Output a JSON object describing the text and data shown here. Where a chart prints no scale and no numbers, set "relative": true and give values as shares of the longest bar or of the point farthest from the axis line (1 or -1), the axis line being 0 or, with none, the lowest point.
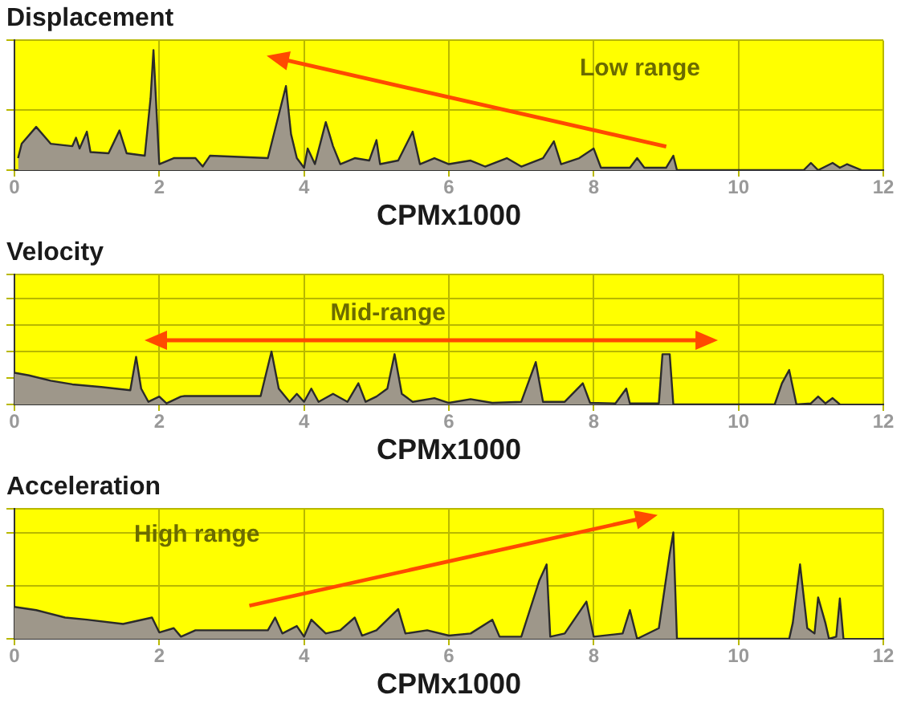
{
  "chart_data": [
    {
      "type": "area",
      "title": "Displacement",
      "xlabel": "CPMx1000",
      "relative": true,
      "xlim": [
        0,
        12
      ],
      "xticks": [
        0,
        2,
        4,
        6,
        8,
        10,
        12
      ],
      "grid": true,
      "tick_labels": "x",
      "annotations": [
        "Low range"
      ],
      "series": [
        {
          "color": "#9e978a",
          "x": [
            0.05,
            0.1,
            0.3,
            0.5,
            0.8,
            0.85,
            0.9,
            1.0,
            1.05,
            1.3,
            1.45,
            1.55,
            1.8,
            1.88,
            1.92,
            1.97,
            2.0,
            2.2,
            2.5,
            2.6,
            2.7,
            3.5,
            3.75,
            3.82,
            3.9,
            4.0,
            4.05,
            4.15,
            4.3,
            4.4,
            4.5,
            4.7,
            4.9,
            5.0,
            5.05,
            5.3,
            5.5,
            5.6,
            5.8,
            6.0,
            6.3,
            6.5,
            6.8,
            7.0,
            7.3,
            7.45,
            7.55,
            7.8,
            8.0,
            8.1,
            8.5,
            8.6,
            8.7,
            9.0,
            9.1,
            9.15,
            10.9,
            11.0,
            11.1,
            11.3,
            11.4,
            11.5,
            11.7
          ],
          "values": [
            0.1,
            0.22,
            0.36,
            0.22,
            0.2,
            0.27,
            0.18,
            0.32,
            0.15,
            0.14,
            0.33,
            0.14,
            0.12,
            0.6,
            1.0,
            0.4,
            0.05,
            0.1,
            0.1,
            0.03,
            0.12,
            0.1,
            0.7,
            0.3,
            0.1,
            0.02,
            0.18,
            0.05,
            0.4,
            0.2,
            0.05,
            0.1,
            0.08,
            0.25,
            0.05,
            0.08,
            0.32,
            0.05,
            0.1,
            0.05,
            0.08,
            0.03,
            0.1,
            0.03,
            0.1,
            0.24,
            0.05,
            0.1,
            0.18,
            0.02,
            0.02,
            0.1,
            0.02,
            0.02,
            0.12,
            0,
            0,
            0.06,
            0,
            0.06,
            0.02,
            0.05,
            0
          ]
        }
      ]
    },
    {
      "type": "area",
      "title": "Velocity",
      "xlabel": "CPMx1000",
      "relative": true,
      "xlim": [
        0,
        12
      ],
      "xticks": [
        0,
        2,
        4,
        6,
        8,
        10,
        12
      ],
      "grid": true,
      "tick_labels": "x",
      "annotations": [
        "Mid-range"
      ],
      "series": [
        {
          "color": "#9e978a",
          "x": [
            0,
            0.2,
            0.5,
            0.8,
            1.2,
            1.6,
            1.68,
            1.75,
            1.85,
            2.0,
            2.1,
            2.3,
            2.35,
            3.4,
            3.55,
            3.65,
            3.8,
            3.9,
            4.0,
            4.1,
            4.2,
            4.4,
            4.6,
            4.75,
            4.85,
            5.0,
            5.15,
            5.25,
            5.35,
            5.5,
            5.8,
            6.0,
            6.3,
            6.6,
            7.0,
            7.2,
            7.3,
            7.6,
            7.85,
            7.95,
            8.3,
            8.45,
            8.5,
            8.9,
            8.95,
            9.05,
            9.1,
            10.5,
            10.6,
            10.7,
            10.8,
            11.0,
            11.1,
            11.2,
            11.3,
            11.4
          ],
          "values": [
            0.6,
            0.55,
            0.45,
            0.38,
            0.33,
            0.27,
            0.9,
            0.3,
            0.05,
            0.15,
            0.02,
            0.15,
            0.16,
            0.16,
            1.0,
            0.3,
            0.05,
            0.2,
            0.05,
            0.3,
            0.05,
            0.2,
            0.05,
            0.4,
            0.05,
            0.15,
            0.3,
            0.95,
            0.2,
            0.05,
            0.12,
            0.03,
            0.1,
            0.03,
            0.05,
            0.8,
            0.05,
            0.05,
            0.4,
            0.03,
            0.02,
            0.3,
            0.02,
            0.02,
            0.95,
            0.95,
            0,
            0,
            0.4,
            0.65,
            0,
            0.02,
            0.15,
            0.02,
            0.12,
            0
          ]
        }
      ]
    },
    {
      "type": "area",
      "title": "Acceleration",
      "xlabel": "CPMx1000",
      "relative": true,
      "xlim": [
        0,
        12
      ],
      "xticks": [
        0,
        2,
        4,
        6,
        8,
        10,
        12
      ],
      "grid": true,
      "tick_labels": "x",
      "annotations": [
        "High range"
      ],
      "series": [
        {
          "color": "#9e978a",
          "x": [
            0,
            0.3,
            0.7,
            1.0,
            1.5,
            1.9,
            2.0,
            2.2,
            2.3,
            2.5,
            3.5,
            3.6,
            3.7,
            3.9,
            4.0,
            4.1,
            4.3,
            4.5,
            4.7,
            4.8,
            5.0,
            5.3,
            5.4,
            5.7,
            6.0,
            6.3,
            6.6,
            6.7,
            7.0,
            7.25,
            7.35,
            7.4,
            7.6,
            7.9,
            8.0,
            8.4,
            8.5,
            8.6,
            8.9,
            9.05,
            9.1,
            9.15,
            10.7,
            10.75,
            10.85,
            10.95,
            11.05,
            11.1,
            11.2,
            11.25,
            11.35,
            11.4,
            11.45
          ],
          "values": [
            0.3,
            0.27,
            0.2,
            0.18,
            0.14,
            0.2,
            0.06,
            0.1,
            0.02,
            0.08,
            0.08,
            0.2,
            0.05,
            0.12,
            0.02,
            0.18,
            0.05,
            0.08,
            0.2,
            0.03,
            0.08,
            0.28,
            0.05,
            0.08,
            0.03,
            0.05,
            0.18,
            0.02,
            0.02,
            0.55,
            0.7,
            0.02,
            0.05,
            0.35,
            0.02,
            0.05,
            0.27,
            0,
            0.1,
            0.8,
            1.0,
            0,
            0,
            0.15,
            0.7,
            0.1,
            0.05,
            0.39,
            0.15,
            0,
            0.02,
            0.38,
            0
          ]
        }
      ]
    }
  ]
}
